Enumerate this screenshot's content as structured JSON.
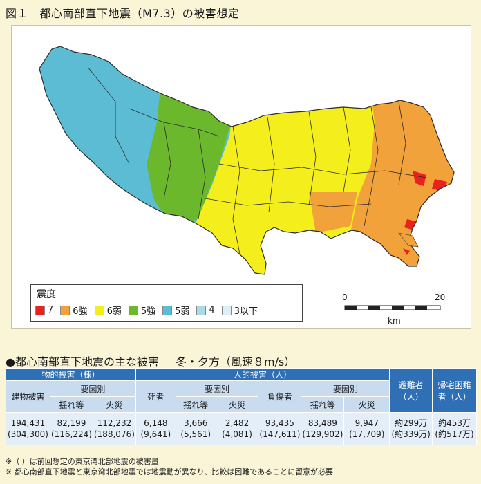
{
  "figure_title": "図１　都心南部直下地震（M7.3）の被害想定",
  "legend": {
    "title": "震度",
    "items": [
      {
        "label": "7",
        "color": "#e8231f"
      },
      {
        "label": "6強",
        "color": "#f2a23a"
      },
      {
        "label": "6弱",
        "color": "#f4ee1c"
      },
      {
        "label": "5強",
        "color": "#6bb82c"
      },
      {
        "label": "5弱",
        "color": "#5bbcd4"
      },
      {
        "label": "4",
        "color": "#a9dbe7"
      },
      {
        "label": "3以下",
        "color": "#ddf0f5"
      }
    ]
  },
  "scale": {
    "start": "0",
    "end": "20",
    "unit": "km"
  },
  "section_title": "●都心南部直下地震の主な被害",
  "section_subtitle": "冬・夕方（風速８m/s）",
  "table": {
    "groups": {
      "physical": "物的被害（棟）",
      "human": "人的被害（人）"
    },
    "building": "建物被害",
    "cause1": "要因別",
    "cause2": "要因別",
    "shaking1": "揺れ等",
    "fire1": "火災",
    "death": "死者",
    "shaking2": "揺れ等",
    "fire2": "火災",
    "injured": "負傷者",
    "shaking3": "揺れ等",
    "fire3": "火災",
    "evacuees": "避難者（人）",
    "stranded": "帰宅困難者（人）",
    "values": {
      "building": [
        "194,431",
        "(304,300)"
      ],
      "b_shaking": [
        "82,199",
        "(116,224)"
      ],
      "b_fire": [
        "112,232",
        "(188,076)"
      ],
      "death": [
        "6,148",
        "(9,641)"
      ],
      "d_shaking": [
        "3,666",
        "(5,561)"
      ],
      "d_fire": [
        "2,482",
        "(4,081)"
      ],
      "injured": [
        "93,435",
        "(147,611)"
      ],
      "i_shaking": [
        "83,489",
        "(129,902)"
      ],
      "i_fire": [
        "9,947",
        "(17,709)"
      ],
      "evacuees": [
        "約299万",
        "(約339万)"
      ],
      "stranded": [
        "約453万",
        "(約517万)"
      ]
    }
  },
  "notes": [
    "※（ ）は前回想定の東京湾北部地震の被害量",
    "※ 都心南部直下地震と東京湾北部地震では地震動が異なり、比較は困難であることに留意が必要"
  ]
}
